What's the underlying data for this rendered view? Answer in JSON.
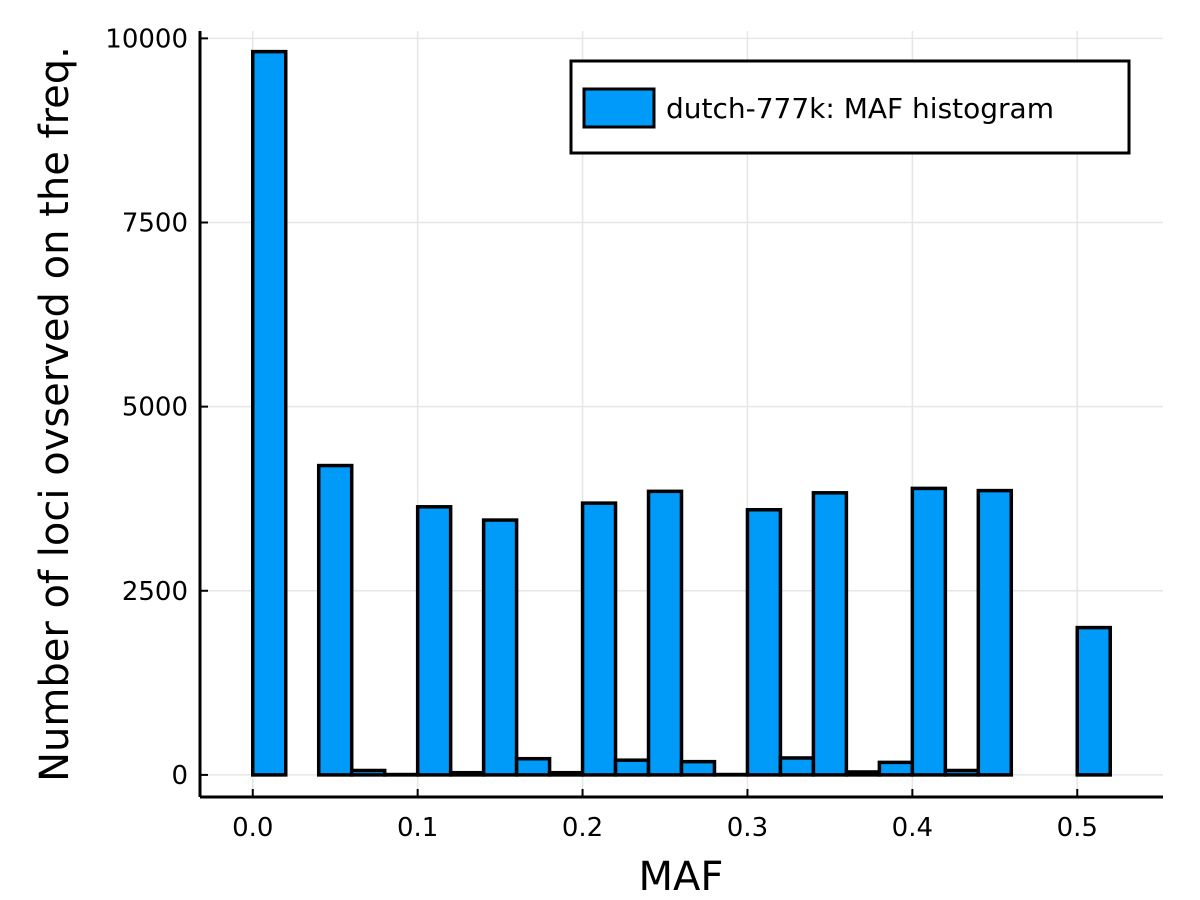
{
  "chart_data": {
    "type": "bar",
    "title": "",
    "xlabel": "MAF",
    "ylabel": "Number of loci ovserved on the freq.",
    "xlim": [
      -0.032,
      0.552
    ],
    "ylim": [
      -300,
      10100
    ],
    "bin_width": 0.02,
    "x_ticks": [
      0.0,
      0.1,
      0.2,
      0.3,
      0.4,
      0.5
    ],
    "x_tick_labels": [
      "0.0",
      "0.1",
      "0.2",
      "0.3",
      "0.4",
      "0.5"
    ],
    "y_ticks": [
      0,
      2500,
      5000,
      7500,
      10000
    ],
    "y_tick_labels": [
      "0",
      "2500",
      "5000",
      "7500",
      "10000"
    ],
    "grid": true,
    "legend_position": "top-right",
    "bar_color": "#009af9",
    "series": [
      {
        "name": "dutch-777k: MAF histogram",
        "bins": [
          {
            "start": 0.0,
            "count": 9820
          },
          {
            "start": 0.02,
            "count": 0
          },
          {
            "start": 0.04,
            "count": 4200
          },
          {
            "start": 0.06,
            "count": 60
          },
          {
            "start": 0.08,
            "count": 5
          },
          {
            "start": 0.1,
            "count": 3640
          },
          {
            "start": 0.12,
            "count": 30
          },
          {
            "start": 0.14,
            "count": 3460
          },
          {
            "start": 0.16,
            "count": 220
          },
          {
            "start": 0.18,
            "count": 30
          },
          {
            "start": 0.2,
            "count": 3690
          },
          {
            "start": 0.22,
            "count": 200
          },
          {
            "start": 0.24,
            "count": 3850
          },
          {
            "start": 0.26,
            "count": 180
          },
          {
            "start": 0.28,
            "count": 5
          },
          {
            "start": 0.3,
            "count": 3600
          },
          {
            "start": 0.32,
            "count": 230
          },
          {
            "start": 0.34,
            "count": 3830
          },
          {
            "start": 0.36,
            "count": 40
          },
          {
            "start": 0.38,
            "count": 170
          },
          {
            "start": 0.4,
            "count": 3890
          },
          {
            "start": 0.42,
            "count": 60
          },
          {
            "start": 0.44,
            "count": 3860
          },
          {
            "start": 0.46,
            "count": 0
          },
          {
            "start": 0.48,
            "count": 0
          },
          {
            "start": 0.5,
            "count": 2000
          }
        ]
      }
    ]
  }
}
